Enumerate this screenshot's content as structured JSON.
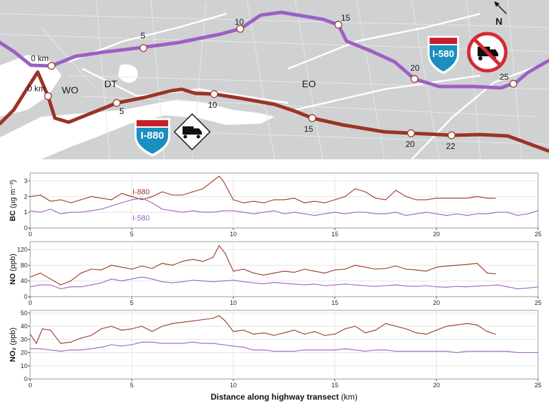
{
  "map": {
    "north_label": "N",
    "regions": [
      "WO",
      "DT",
      "EO"
    ],
    "i580_markers": [
      "0 km",
      "5",
      "10",
      "15",
      "20",
      "25"
    ],
    "i880_markers": [
      "0 km",
      "5",
      "10",
      "15",
      "20",
      "22"
    ],
    "shield_580": "I-580",
    "shield_880": "I-880",
    "route_colors": {
      "i880": "#9b3424",
      "i580": "#9d5fc4"
    }
  },
  "chart_data": [
    {
      "type": "line",
      "ylabel": "BC",
      "ylabel_unit": "(µg m⁻³)",
      "ylim": [
        0,
        3.5
      ],
      "yticks": [
        "0",
        "1",
        "2",
        "3"
      ],
      "xlim": [
        0,
        25
      ],
      "xticks": [
        "0",
        "5",
        "10",
        "15",
        "20",
        "25"
      ],
      "series": [
        {
          "name": "I-880",
          "color": "#9b3424",
          "x": [
            0,
            0.5,
            1,
            1.5,
            2,
            2.5,
            3,
            3.5,
            4,
            4.5,
            5,
            5.5,
            6,
            6.5,
            7,
            7.5,
            8,
            8.5,
            9,
            9.3,
            9.5,
            10,
            10.5,
            11,
            11.5,
            12,
            12.5,
            13,
            13.5,
            14,
            14.5,
            15,
            15.5,
            16,
            16.5,
            17,
            17.5,
            18,
            18.5,
            19,
            19.5,
            20,
            20.5,
            21,
            21.5,
            22,
            22.5,
            22.9
          ],
          "y": [
            2.0,
            2.1,
            1.7,
            1.8,
            1.6,
            1.8,
            2.0,
            1.9,
            1.8,
            2.2,
            2.0,
            1.8,
            2.0,
            2.3,
            2.1,
            2.1,
            2.3,
            2.5,
            3.0,
            3.3,
            3.0,
            1.8,
            1.6,
            1.7,
            1.6,
            1.8,
            1.8,
            1.9,
            1.6,
            1.7,
            1.6,
            1.8,
            2.0,
            2.5,
            2.3,
            1.9,
            1.8,
            2.4,
            2.0,
            1.8,
            1.8,
            1.9,
            1.9,
            1.9,
            1.9,
            2.0,
            1.9,
            1.9
          ]
        },
        {
          "name": "I-580",
          "color": "#9d5fc4",
          "x": [
            0,
            0.5,
            1,
            1.5,
            2,
            2.5,
            3,
            3.5,
            4,
            4.5,
            5,
            5.5,
            6,
            6.5,
            7,
            7.5,
            8,
            8.5,
            9,
            9.5,
            10,
            10.5,
            11,
            11.5,
            12,
            12.5,
            13,
            13.5,
            14,
            14.5,
            15,
            15.5,
            16,
            16.5,
            17,
            17.5,
            18,
            18.5,
            19,
            19.5,
            20,
            20.5,
            21,
            21.5,
            22,
            22.5,
            23,
            23.5,
            24,
            24.5,
            25
          ],
          "y": [
            1.1,
            1.0,
            1.2,
            0.9,
            1.0,
            1.0,
            1.1,
            1.2,
            1.4,
            1.6,
            1.8,
            1.9,
            1.6,
            1.2,
            1.1,
            1.0,
            1.1,
            1.0,
            1.0,
            1.1,
            1.1,
            1.0,
            0.9,
            1.0,
            1.1,
            0.9,
            1.0,
            0.9,
            0.8,
            0.9,
            1.0,
            0.9,
            1.0,
            1.0,
            0.9,
            0.9,
            1.0,
            0.8,
            0.9,
            1.0,
            0.9,
            0.8,
            0.9,
            0.8,
            0.9,
            0.9,
            1.0,
            1.0,
            0.8,
            0.9,
            1.1
          ]
        }
      ]
    },
    {
      "type": "line",
      "ylabel": "NO",
      "ylabel_unit": "(ppb)",
      "ylim": [
        0,
        140
      ],
      "yticks": [
        "0",
        "40",
        "80",
        "120"
      ],
      "xlim": [
        0,
        25
      ],
      "xticks": [
        "0",
        "5",
        "10",
        "15",
        "20",
        "25"
      ],
      "series": [
        {
          "name": "I-880",
          "color": "#9b3424",
          "x": [
            0,
            0.5,
            1,
            1.5,
            2,
            2.5,
            3,
            3.5,
            4,
            4.5,
            5,
            5.5,
            6,
            6.5,
            7,
            7.5,
            8,
            8.5,
            9,
            9.3,
            9.6,
            10,
            10.5,
            11,
            11.5,
            12,
            12.5,
            13,
            13.5,
            14,
            14.5,
            15,
            15.5,
            16,
            16.5,
            17,
            17.5,
            18,
            18.5,
            19,
            19.5,
            20,
            20.5,
            21,
            21.5,
            22,
            22.5,
            22.9
          ],
          "y": [
            50,
            60,
            45,
            30,
            40,
            60,
            70,
            68,
            80,
            75,
            70,
            78,
            72,
            85,
            80,
            90,
            95,
            90,
            100,
            130,
            110,
            65,
            70,
            60,
            55,
            60,
            65,
            62,
            70,
            65,
            60,
            68,
            70,
            80,
            75,
            70,
            72,
            78,
            70,
            68,
            65,
            75,
            78,
            80,
            82,
            85,
            60,
            58
          ]
        },
        {
          "name": "I-580",
          "color": "#9d5fc4",
          "x": [
            0,
            0.5,
            1,
            1.5,
            2,
            2.5,
            3,
            3.5,
            4,
            4.5,
            5,
            5.5,
            6,
            6.5,
            7,
            7.5,
            8,
            8.5,
            9,
            9.5,
            10,
            10.5,
            11,
            11.5,
            12,
            12.5,
            13,
            13.5,
            14,
            14.5,
            15,
            15.5,
            16,
            16.5,
            17,
            17.5,
            18,
            18.5,
            19,
            19.5,
            20,
            20.5,
            21,
            21.5,
            22,
            22.5,
            23,
            23.5,
            24,
            24.5,
            25
          ],
          "y": [
            25,
            30,
            30,
            20,
            25,
            25,
            30,
            35,
            45,
            40,
            45,
            50,
            45,
            38,
            35,
            38,
            42,
            40,
            38,
            40,
            42,
            38,
            35,
            33,
            36,
            34,
            32,
            30,
            32,
            28,
            30,
            32,
            30,
            28,
            26,
            28,
            30,
            27,
            26,
            28,
            25,
            24,
            26,
            25,
            27,
            28,
            30,
            25,
            20,
            22,
            25
          ]
        }
      ]
    },
    {
      "type": "line",
      "ylabel": "NO₂",
      "ylabel_unit": "(ppb)",
      "ylim": [
        0,
        52
      ],
      "yticks": [
        "0",
        "10",
        "20",
        "30",
        "40",
        "50"
      ],
      "xlim": [
        0,
        25
      ],
      "xticks": [
        "0",
        "5",
        "10",
        "15",
        "20",
        "25"
      ],
      "xlabel": "Distance along highway transect",
      "xlabel_unit": "(km)",
      "series": [
        {
          "name": "I-880",
          "color": "#9b3424",
          "x": [
            0,
            0.3,
            0.6,
            1,
            1.5,
            2,
            2.5,
            3,
            3.5,
            4,
            4.5,
            5,
            5.5,
            6,
            6.5,
            7,
            7.5,
            8,
            8.5,
            9,
            9.3,
            9.6,
            10,
            10.5,
            11,
            11.5,
            12,
            12.5,
            13,
            13.5,
            14,
            14.5,
            15,
            15.5,
            16,
            16.5,
            17,
            17.5,
            18,
            18.5,
            19,
            19.5,
            20,
            20.5,
            21,
            21.5,
            22,
            22.5,
            22.9
          ],
          "y": [
            34,
            27,
            38,
            37,
            27,
            28,
            31,
            33,
            38,
            40,
            37,
            38,
            40,
            36,
            40,
            42,
            43,
            44,
            45,
            46,
            48,
            44,
            36,
            37,
            34,
            35,
            33,
            35,
            37,
            34,
            36,
            33,
            34,
            38,
            40,
            35,
            37,
            42,
            40,
            38,
            35,
            34,
            37,
            40,
            41,
            42,
            41,
            36,
            34
          ]
        },
        {
          "name": "I-580",
          "color": "#9d5fc4",
          "x": [
            0,
            0.5,
            1,
            1.5,
            2,
            2.5,
            3,
            3.5,
            4,
            4.5,
            5,
            5.5,
            6,
            6.5,
            7,
            7.5,
            8,
            8.5,
            9,
            9.5,
            10,
            10.5,
            11,
            11.5,
            12,
            12.5,
            13,
            13.5,
            14,
            14.5,
            15,
            15.5,
            16,
            16.5,
            17,
            17.5,
            18,
            18.5,
            19,
            19.5,
            20,
            20.5,
            21,
            21.5,
            22,
            22.5,
            23,
            23.5,
            24,
            24.5,
            25
          ],
          "y": [
            23,
            23,
            22,
            21,
            22,
            22,
            23,
            24,
            26,
            25,
            26,
            28,
            28,
            27,
            27,
            27,
            28,
            27,
            27,
            26,
            25,
            24,
            22,
            22,
            21,
            21,
            21,
            22,
            22,
            22,
            22,
            23,
            22,
            21,
            22,
            22,
            21,
            21,
            21,
            21,
            21,
            21,
            20,
            21,
            21,
            21,
            21,
            21,
            20,
            20,
            20
          ]
        }
      ]
    }
  ]
}
